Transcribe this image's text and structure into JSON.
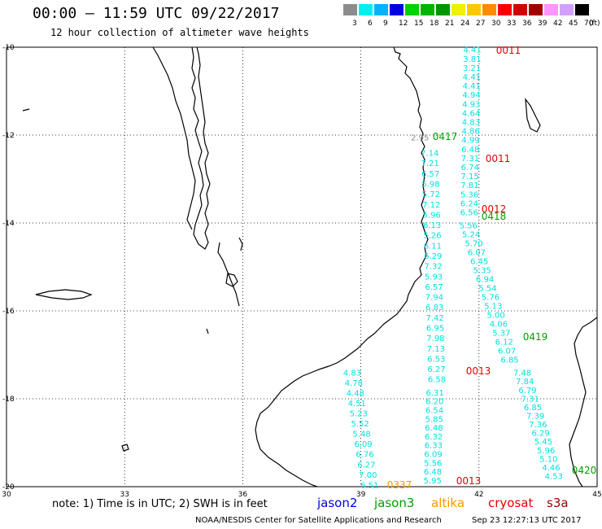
{
  "header": {
    "title": "00:00 – 11:59 UTC 09/22/2017",
    "subtitle": "12 hour collection of altimeter wave heights"
  },
  "legend": {
    "unit": "(ft)",
    "bins": [
      {
        "label": "3",
        "color": "#8c8c8c"
      },
      {
        "label": "6",
        "color": "#00f0f0"
      },
      {
        "label": "9",
        "color": "#00b4ff"
      },
      {
        "label": "12",
        "color": "#0000e6"
      },
      {
        "label": "15",
        "color": "#00d200"
      },
      {
        "label": "18",
        "color": "#00b400"
      },
      {
        "label": "21",
        "color": "#009600"
      },
      {
        "label": "24",
        "color": "#f0f000"
      },
      {
        "label": "27",
        "color": "#ffc800"
      },
      {
        "label": "30",
        "color": "#ff8c00"
      },
      {
        "label": "33",
        "color": "#ff0000"
      },
      {
        "label": "36",
        "color": "#d20000"
      },
      {
        "label": "39",
        "color": "#a00000"
      },
      {
        "label": "42",
        "color": "#ff96ff"
      },
      {
        "label": "45",
        "color": "#d2a0ff"
      },
      {
        "label": "70",
        "color": "#000000"
      }
    ]
  },
  "axes": {
    "lat_labels": [
      "-10",
      "-12",
      "-14",
      "-16",
      "-18",
      "-20"
    ],
    "lon_labels": [
      "30",
      "33",
      "36",
      "39",
      "42",
      "45"
    ]
  },
  "footer": {
    "note": "note: 1) Time is in UTC; 2) SWH is in feet",
    "satellites": [
      {
        "name": "jason2",
        "color": "#0000e6"
      },
      {
        "name": "jason3",
        "color": "#00a000"
      },
      {
        "name": "altika",
        "color": "#ff9600"
      },
      {
        "name": "cryosat",
        "color": "#e60000"
      },
      {
        "name": "s3a",
        "color": "#a00000"
      }
    ],
    "credit": "NOAA/NESDIS Center for Satellite Applications and Research",
    "timestamp": "Sep 23 12:27:13 UTC 2017"
  },
  "pass_labels": [
    {
      "text": "0011",
      "color": "#e60000"
    },
    {
      "text": "0417",
      "color": "#00a000"
    },
    {
      "text": "0011",
      "color": "#e60000"
    },
    {
      "text": "0012",
      "color": "#e60000"
    },
    {
      "text": "0418",
      "color": "#00a000"
    },
    {
      "text": "0419",
      "color": "#00a000"
    },
    {
      "text": "0013",
      "color": "#e60000"
    },
    {
      "text": "0337",
      "color": "#ff9600"
    },
    {
      "text": "0013",
      "color": "#e60000"
    },
    {
      "text": "0420",
      "color": "#00a000"
    }
  ],
  "tracks": [
    {
      "name": "track-a",
      "color": "#00e0e0",
      "start_lonlat": [
        41.83,
        -10.05
      ],
      "end_lonlat": [
        41.75,
        -13.75
      ],
      "values": [
        "4.41",
        "3.81",
        "3.21",
        "4.41",
        "4.41",
        "4.94",
        "4.93",
        "4.64",
        "4.83",
        "4.86",
        "4.99",
        "6.48",
        "7.31",
        "6.74",
        "7.15",
        "7.81",
        "5.36",
        "6.24",
        "6.56"
      ]
    },
    {
      "name": "track-b",
      "color": "#00e0e0",
      "start_lonlat": [
        40.75,
        -12.4
      ],
      "end_lonlat": [
        40.93,
        -17.55
      ],
      "values": [
        "7.14",
        "7.21",
        "6.57",
        "5.98",
        "5.72",
        "7.12",
        "5.96",
        "6.13",
        "5.26",
        "6.11",
        "6.29",
        "7.32",
        "5.93",
        "6.57",
        "7.94",
        "6.83",
        "7.42",
        "6.95",
        "7.98",
        "7.13",
        "6.53",
        "6.27",
        "6.58"
      ]
    },
    {
      "name": "track-c",
      "color": "#00e0e0",
      "start_lonlat": [
        41.73,
        -14.05
      ],
      "end_lonlat": [
        42.78,
        -17.1
      ],
      "values": [
        "5.56",
        "5.24",
        "5.70",
        "6.07",
        "6.45",
        "5.35",
        "6.94",
        "5.54",
        "5.76",
        "5.13",
        "5.00",
        "4.06",
        "5.37",
        "6.12",
        "6.07",
        "6.85"
      ]
    },
    {
      "name": "track-d",
      "color": "#00e0e0",
      "start_lonlat": [
        43.1,
        -17.4
      ],
      "end_lonlat": [
        43.9,
        -19.75
      ],
      "values": [
        "7.48",
        "7.84",
        "6.79",
        "7.31",
        "6.85",
        "7.39",
        "7.36",
        "6.29",
        "5.45",
        "5.96",
        "5.10",
        "4.46",
        "4.53"
      ]
    },
    {
      "name": "track-e",
      "color": "#00e0e0",
      "start_lonlat": [
        40.88,
        -17.85
      ],
      "end_lonlat": [
        40.82,
        -19.85
      ],
      "values": [
        "6.31",
        "6.20",
        "6.54",
        "5.85",
        "6.48",
        "6.32",
        "6.33",
        "6.09",
        "5.56",
        "6.48",
        "5.95"
      ]
    },
    {
      "name": "track-f",
      "color": "#00e0e0",
      "start_lonlat": [
        38.78,
        -17.4
      ],
      "end_lonlat": [
        39.22,
        -19.95
      ],
      "values": [
        "4.83",
        "4.78",
        "4.48",
        "4.51",
        "5.23",
        "5.52",
        "5.48",
        "6.09",
        "6.76",
        "6.27",
        "7.00",
        "6.51"
      ]
    },
    {
      "name": "track-g",
      "color": "#888888",
      "start_lonlat": [
        40.5,
        -12.05
      ],
      "end_lonlat": [
        40.5,
        -12.05
      ],
      "values": [
        "2.95"
      ]
    }
  ]
}
